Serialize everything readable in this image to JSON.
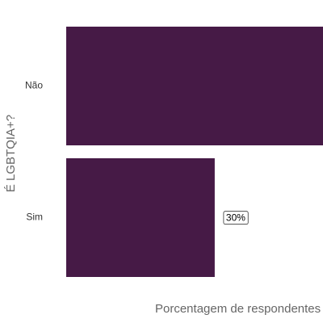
{
  "chart_data": {
    "type": "bar",
    "orientation": "horizontal",
    "categories": [
      "Não",
      "Sim"
    ],
    "values": [
      70,
      30
    ],
    "value_labels": [
      null,
      "30%"
    ],
    "color": "#461a46",
    "xlim": [
      0,
      100
    ],
    "xlabel": "Porcentagem de respondentes",
    "ylabel": "É LGBTQIA+?"
  }
}
